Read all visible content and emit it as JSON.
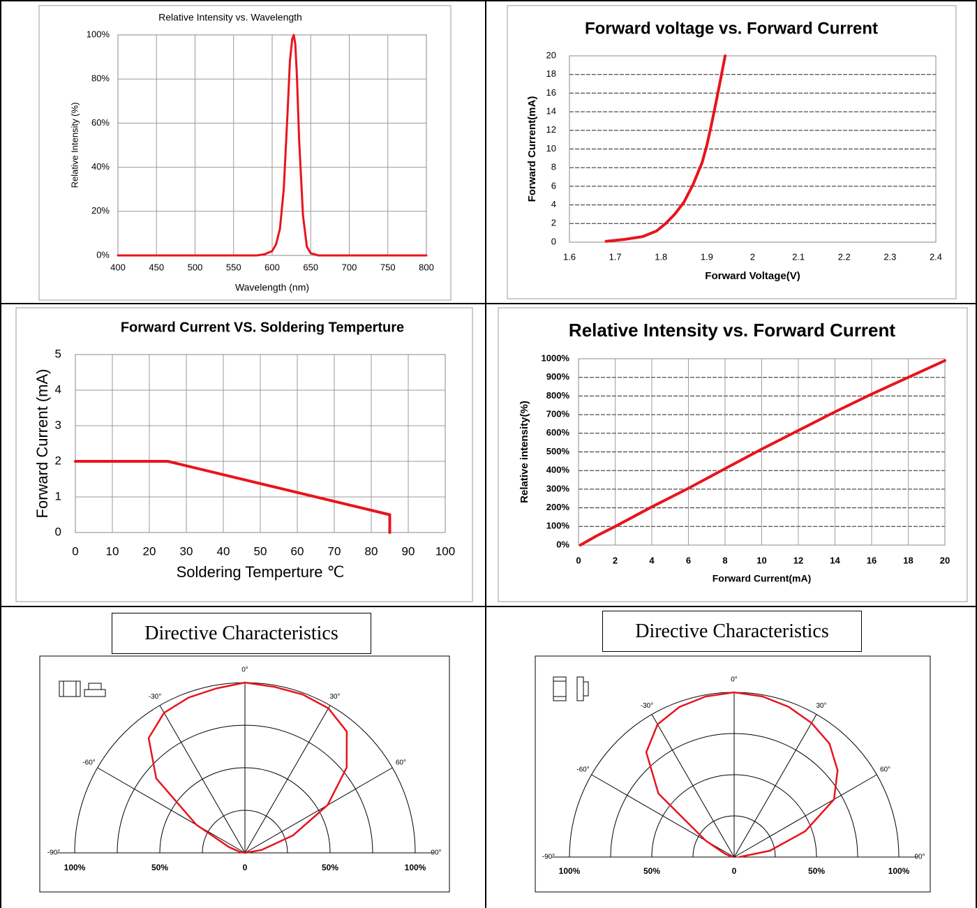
{
  "colors": {
    "curve": "#e8141c",
    "frame": "#000000",
    "panel_border": "#9a9a9a",
    "grid": "#999999"
  },
  "chart_data": [
    {
      "id": "spectrum",
      "type": "line",
      "title": "Relative Intensity vs. Wavelength",
      "xlabel": "Wavelength (nm)",
      "ylabel": "Relative Intensity (%)",
      "xlim": [
        400,
        800
      ],
      "ylim": [
        0,
        100
      ],
      "xticks": [
        "400",
        "450",
        "500",
        "550",
        "600",
        "650",
        "700",
        "750",
        "800"
      ],
      "yticks": [
        "0%",
        "20%",
        "40%",
        "60%",
        "80%",
        "100%"
      ],
      "grid": true,
      "series": [
        {
          "x": [
            400,
            580,
            590,
            600,
            605,
            610,
            615,
            620,
            623,
            626,
            628,
            630,
            632,
            635,
            640,
            645,
            650,
            660,
            700,
            800
          ],
          "y": [
            0,
            0,
            0.5,
            2,
            5,
            12,
            30,
            65,
            88,
            98,
            100,
            96,
            82,
            52,
            18,
            4,
            1,
            0,
            0,
            0
          ]
        }
      ]
    },
    {
      "id": "iv",
      "type": "line",
      "title": "Forward voltage vs. Forward Current",
      "xlabel": "Forward Voltage(V)",
      "ylabel": "Forward Current(mA)",
      "xlim": [
        1.6,
        2.4
      ],
      "ylim": [
        0,
        20
      ],
      "xticks": [
        "1.6",
        "1.7",
        "1.8",
        "1.9",
        "2",
        "2.1",
        "2.2",
        "2.3",
        "2.4"
      ],
      "yticks": [
        "0",
        "2",
        "4",
        "6",
        "8",
        "10",
        "12",
        "14",
        "16",
        "18",
        "20"
      ],
      "grid": "horizontal-dashed",
      "series": [
        {
          "x": [
            1.68,
            1.72,
            1.76,
            1.79,
            1.81,
            1.83,
            1.85,
            1.87,
            1.89,
            1.9,
            1.91,
            1.92,
            1.93,
            1.94
          ],
          "y": [
            0.1,
            0.3,
            0.6,
            1.2,
            2.0,
            3.0,
            4.3,
            6.2,
            8.6,
            10.4,
            12.6,
            15.0,
            17.5,
            20
          ]
        }
      ]
    },
    {
      "id": "derating",
      "type": "line",
      "title": "Forward Current  VS. Soldering Temperture",
      "xlabel": "Soldering Temperture ℃",
      "ylabel": "Forward Current (mA)",
      "xlim": [
        0,
        100
      ],
      "ylim": [
        0,
        5
      ],
      "xticks": [
        "0",
        "10",
        "20",
        "30",
        "40",
        "50",
        "60",
        "70",
        "80",
        "90",
        "100"
      ],
      "yticks": [
        "0",
        "1",
        "2",
        "3",
        "4",
        "5"
      ],
      "grid": true,
      "series": [
        {
          "x": [
            0,
            25,
            85,
            85
          ],
          "y": [
            2,
            2,
            0.5,
            0
          ]
        }
      ]
    },
    {
      "id": "intensity-current",
      "type": "line",
      "title": "Relative Intensity vs. Forward Current",
      "xlabel": "Forward Current(mA)",
      "ylabel": "Relative intensity(%)",
      "xlim": [
        0,
        20
      ],
      "ylim": [
        0,
        1000
      ],
      "xticks": [
        "0",
        "2",
        "4",
        "6",
        "8",
        "10",
        "12",
        "14",
        "16",
        "18",
        "20"
      ],
      "yticks": [
        "0%",
        "100%",
        "200%",
        "300%",
        "400%",
        "500%",
        "600%",
        "700%",
        "800%",
        "900%",
        "1000%"
      ],
      "grid": true,
      "series": [
        {
          "x": [
            0.1,
            1,
            2,
            4,
            6,
            8,
            10,
            12,
            14,
            16,
            18,
            20
          ],
          "y": [
            0,
            50,
            100,
            205,
            305,
            410,
            515,
            615,
            715,
            810,
            900,
            990
          ]
        }
      ]
    },
    {
      "id": "polar-left",
      "type": "polar",
      "title": "Directive Characteristics",
      "angle_labels": [
        "0°",
        "30°",
        "-30°",
        "60°",
        "-60°",
        "90°",
        "-90°"
      ],
      "radial_labels": [
        "100%",
        "50%",
        "0",
        "50%",
        "100%"
      ],
      "series": [
        {
          "angle": [
            -90,
            -80,
            -70,
            -60,
            -50,
            -40,
            -30,
            -20,
            -10,
            0,
            10,
            20,
            30,
            40,
            50,
            60,
            70,
            80,
            90
          ],
          "r": [
            0,
            0.03,
            0.1,
            0.33,
            0.68,
            0.88,
            0.95,
            0.97,
            0.98,
            1,
            0.99,
            0.99,
            0.98,
            0.93,
            0.78,
            0.56,
            0.3,
            0.1,
            0
          ]
        }
      ]
    },
    {
      "id": "polar-right",
      "type": "polar",
      "title": "Directive Characteristics",
      "angle_labels": [
        "0°",
        "30°",
        "-30°",
        "60°",
        "-60°",
        "90°",
        "-90°"
      ],
      "radial_labels": [
        "100%",
        "50%",
        "0",
        "50%",
        "100%"
      ],
      "series": [
        {
          "angle": [
            -90,
            -80,
            -70,
            -60,
            -50,
            -40,
            -30,
            -20,
            -10,
            0,
            10,
            20,
            30,
            40,
            50,
            60,
            70,
            80,
            90
          ],
          "r": [
            0,
            0.02,
            0.06,
            0.2,
            0.6,
            0.83,
            0.93,
            0.97,
            0.99,
            1,
            0.99,
            0.97,
            0.94,
            0.9,
            0.82,
            0.7,
            0.46,
            0.22,
            0.03
          ]
        }
      ]
    }
  ]
}
